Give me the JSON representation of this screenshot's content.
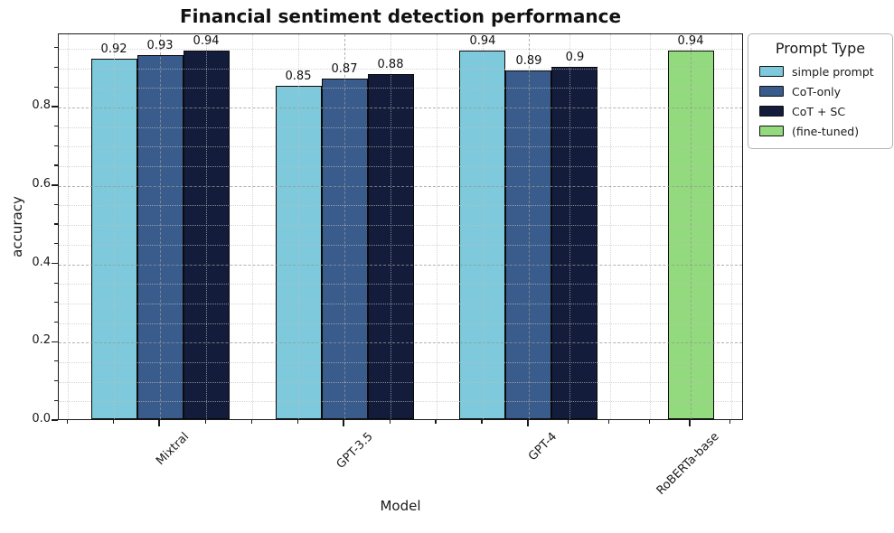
{
  "figure": {
    "title": "Financial sentiment detection performance"
  },
  "chart_data": {
    "type": "bar",
    "title": "Financial sentiment detection performance",
    "xlabel": "Model",
    "ylabel": "accuracy",
    "ylim": [
      0,
      0.987
    ],
    "yticks": [
      0.0,
      0.2,
      0.4,
      0.6,
      0.8
    ],
    "minor_tick_step": 0.05,
    "grid": "major dashed gray + minor dotted light gray, both axes, drawn over bars",
    "bar_value_labels": true,
    "categories": [
      "Mixtral",
      "GPT-3.5",
      "GPT-4",
      "RoBERTa-base"
    ],
    "series": [
      {
        "name": "simple prompt",
        "color": "#7ec9dc",
        "values": [
          0.92,
          0.85,
          0.94,
          null
        ]
      },
      {
        "name": "CoT-only",
        "color": "#3a5c8c",
        "values": [
          0.93,
          0.87,
          0.89,
          null
        ]
      },
      {
        "name": "CoT + SC",
        "color": "#141c3b",
        "values": [
          0.94,
          0.88,
          0.9,
          null
        ]
      },
      {
        "name": "(fine-tuned)",
        "color": "#93da7e",
        "values": [
          null,
          null,
          null,
          0.94
        ]
      }
    ],
    "legend": {
      "title": "Prompt Type",
      "position": "upper right, outside plot area"
    }
  }
}
